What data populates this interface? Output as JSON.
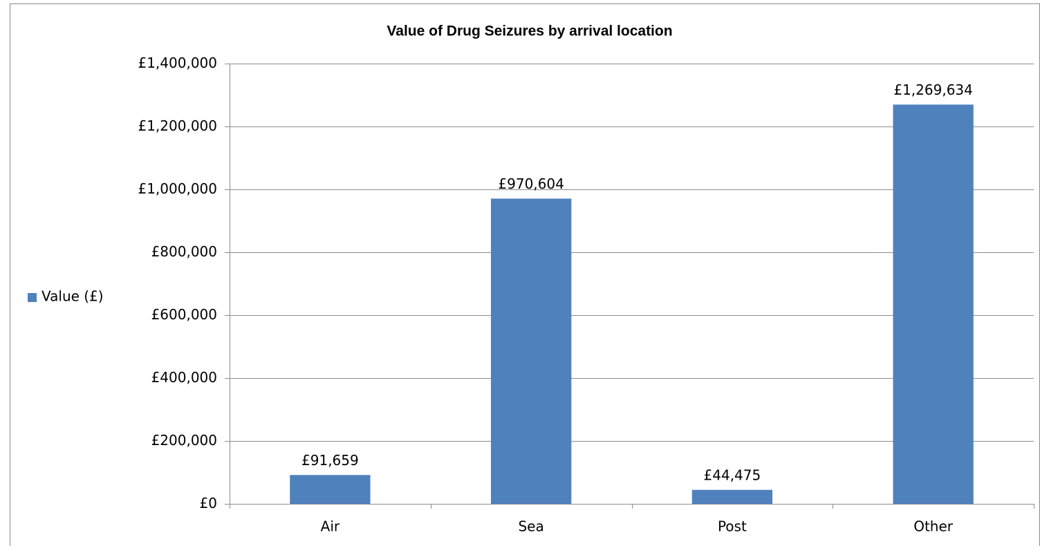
{
  "chart_data": {
    "type": "bar",
    "title": "Value of Drug Seizures by arrival location",
    "categories": [
      "Air",
      "Sea",
      "Post",
      "Other"
    ],
    "series": [
      {
        "name": "Value (£)",
        "color": "#4f81bd",
        "values": [
          91659,
          970604,
          44475,
          1269634
        ],
        "value_labels": [
          "£91,659",
          "£970,604",
          "£44,475",
          "£1,269,634"
        ]
      }
    ],
    "ylim": [
      0,
      1400000
    ],
    "yticks": [
      {
        "value": 0,
        "label": "£0"
      },
      {
        "value": 200000,
        "label": "£200,000"
      },
      {
        "value": 400000,
        "label": "£400,000"
      },
      {
        "value": 600000,
        "label": "£600,000"
      },
      {
        "value": 800000,
        "label": "£800,000"
      },
      {
        "value": 1000000,
        "label": "£1,000,000"
      },
      {
        "value": 1200000,
        "label": "£1,200,000"
      },
      {
        "value": 1400000,
        "label": "£1,400,000"
      }
    ],
    "grid": true,
    "legend": "left"
  }
}
